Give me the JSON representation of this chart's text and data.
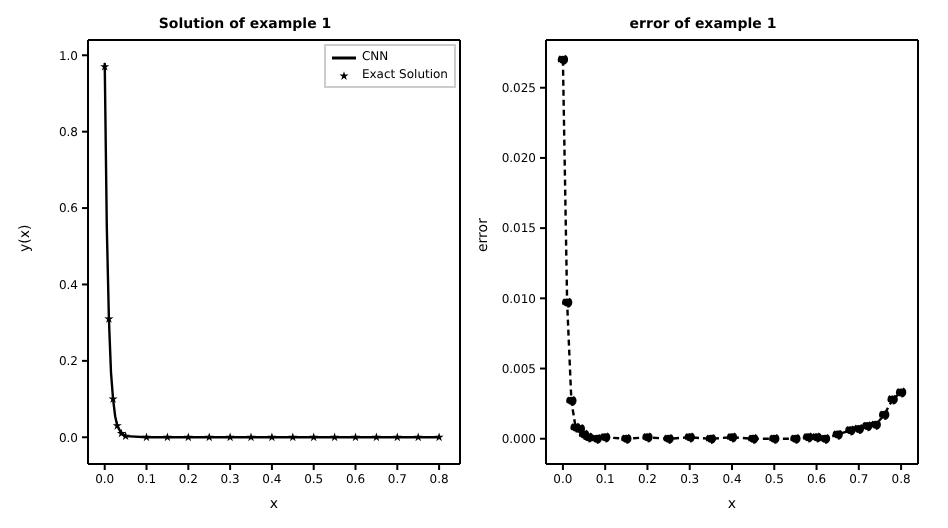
{
  "chart_data": [
    {
      "type": "line",
      "title": "Solution of example 1",
      "xlabel": "x",
      "ylabel": "y(x)",
      "xlim": [
        -0.04,
        0.85
      ],
      "ylim": [
        -0.07,
        1.04
      ],
      "xticks": [
        {
          "value": 0,
          "label": "0.0"
        },
        0.1,
        0.2,
        0.3,
        0.4,
        0.5,
        0.6,
        0.7,
        0.8
      ],
      "yticks": [
        {
          "value": 0,
          "label": "0.0"
        },
        0.2,
        0.4,
        0.6,
        0.8,
        {
          "value": 1,
          "label": "1.0"
        }
      ],
      "legend": "top right",
      "grid": false,
      "series": [
        {
          "name": "CNN",
          "color": "#000000",
          "marker": "none",
          "line_style": "solid",
          "x": [
            0,
            0.005,
            0.01,
            0.015,
            0.02,
            0.025,
            0.03,
            0.04,
            0.05,
            0.1,
            0.15,
            0.2,
            0.25,
            0.3,
            0.35,
            0.4,
            0.45,
            0.5,
            0.55,
            0.6,
            0.65,
            0.7,
            0.75,
            0.8
          ],
          "values": [
            0.98,
            0.55,
            0.31,
            0.17,
            0.1,
            0.055,
            0.03,
            0.01,
            0.003,
            0,
            0,
            0,
            0,
            0,
            0,
            0,
            0,
            0,
            0,
            0,
            0,
            0,
            0,
            0
          ]
        },
        {
          "name": "Exact Solution",
          "type": "scatter",
          "color": "#000000",
          "marker": "star",
          "x": [
            0,
            0.01,
            0.02,
            0.03,
            0.04,
            0.05,
            0.1,
            0.15,
            0.2,
            0.25,
            0.3,
            0.35,
            0.4,
            0.45,
            0.5,
            0.55,
            0.6,
            0.65,
            0.7,
            0.75,
            0.8
          ],
          "values": [
            0.97,
            0.31,
            0.1,
            0.03,
            0.01,
            0.003,
            0,
            0,
            0,
            0,
            0,
            0,
            0,
            0,
            0,
            0,
            0,
            0,
            0,
            0,
            0
          ]
        }
      ]
    },
    {
      "type": "line",
      "title": "error of example 1",
      "xlabel": "x",
      "ylabel": "error",
      "xlim": [
        -0.04,
        0.84
      ],
      "ylim": [
        -0.0018,
        0.0284
      ],
      "xticks": [
        {
          "value": 0,
          "label": "0.0"
        },
        0.1,
        0.2,
        0.3,
        0.4,
        0.5,
        0.6,
        0.7,
        0.8
      ],
      "yticks": [
        {
          "value": 0,
          "label": "0.000"
        },
        0.005,
        {
          "value": 0.01,
          "label": "0.010"
        },
        0.015,
        {
          "value": 0.02,
          "label": "0.020"
        },
        0.025
      ],
      "grid": false,
      "legend": false,
      "series": [
        {
          "color": "#000000",
          "marker": "circle",
          "line_style": "dashed",
          "x": [
            0,
            0.01,
            0.02,
            0.03,
            0.04,
            0.05,
            0.06,
            0.08,
            0.1,
            0.15,
            0.2,
            0.25,
            0.3,
            0.35,
            0.4,
            0.45,
            0.5,
            0.55,
            0.58,
            0.6,
            0.62,
            0.65,
            0.68,
            0.7,
            0.72,
            0.74,
            0.76,
            0.78,
            0.8
          ],
          "values": [
            0.027,
            0.0097,
            0.0027,
            0.0008,
            0.0007,
            0.0003,
            0.0001,
            0,
            0.0001,
            0,
            0.0001,
            0,
            0.0001,
            0,
            0.0001,
            0,
            0,
            0,
            0.0001,
            0.0001,
            0,
            0.0003,
            0.0006,
            0.0007,
            0.0009,
            0.001,
            0.0017,
            0.0028,
            0.0033
          ]
        }
      ]
    }
  ]
}
